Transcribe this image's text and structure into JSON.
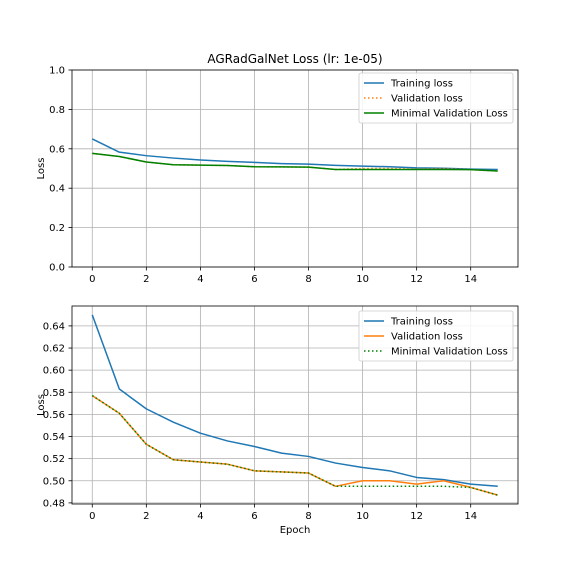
{
  "chart_data": [
    {
      "type": "line",
      "title": "AGRadGalNet Loss (lr: 1e-05)",
      "xlabel": "",
      "ylabel": "Loss",
      "xlim": [
        -0.75,
        15.75
      ],
      "ylim": [
        0.0,
        1.0
      ],
      "xticks": [
        0,
        2,
        4,
        6,
        8,
        10,
        12,
        14
      ],
      "yticks": [
        0.0,
        0.2,
        0.4,
        0.6,
        0.8,
        1.0
      ],
      "ytick_decimals": 1,
      "grid": true,
      "legend": "top-right",
      "x": [
        0,
        1,
        2,
        3,
        4,
        5,
        6,
        7,
        8,
        9,
        10,
        11,
        12,
        13,
        14,
        15
      ],
      "series": [
        {
          "name": "Training loss",
          "color": "#1f77b4",
          "style": "solid",
          "values": [
            0.65,
            0.583,
            0.565,
            0.553,
            0.543,
            0.536,
            0.531,
            0.525,
            0.522,
            0.516,
            0.512,
            0.509,
            0.503,
            0.501,
            0.497,
            0.495
          ]
        },
        {
          "name": "Validation loss",
          "color": "#ff7f0e",
          "style": "dotted",
          "values": [
            0.577,
            0.561,
            0.533,
            0.519,
            0.517,
            0.515,
            0.509,
            0.508,
            0.507,
            0.495,
            0.5,
            0.5,
            0.497,
            0.5,
            0.494,
            0.487
          ]
        },
        {
          "name": "Minimal Validation Loss",
          "color": "#008000",
          "style": "solid",
          "values": [
            0.577,
            0.561,
            0.533,
            0.519,
            0.517,
            0.515,
            0.509,
            0.508,
            0.507,
            0.495,
            0.495,
            0.495,
            0.495,
            0.495,
            0.494,
            0.487
          ]
        }
      ]
    },
    {
      "type": "line",
      "title": "",
      "xlabel": "Epoch",
      "ylabel": "Loss",
      "xlim": [
        -0.75,
        15.75
      ],
      "ylim": [
        0.479,
        0.658
      ],
      "xticks": [
        0,
        2,
        4,
        6,
        8,
        10,
        12,
        14
      ],
      "yticks": [
        0.48,
        0.5,
        0.52,
        0.54,
        0.56,
        0.58,
        0.6,
        0.62,
        0.64
      ],
      "ytick_decimals": 2,
      "grid": true,
      "legend": "top-right",
      "x": [
        0,
        1,
        2,
        3,
        4,
        5,
        6,
        7,
        8,
        9,
        10,
        11,
        12,
        13,
        14,
        15
      ],
      "series": [
        {
          "name": "Training loss",
          "color": "#1f77b4",
          "style": "solid",
          "values": [
            0.65,
            0.583,
            0.565,
            0.553,
            0.543,
            0.536,
            0.531,
            0.525,
            0.522,
            0.516,
            0.512,
            0.509,
            0.503,
            0.501,
            0.497,
            0.495
          ]
        },
        {
          "name": "Validation loss",
          "color": "#ff7f0e",
          "style": "solid",
          "values": [
            0.577,
            0.561,
            0.533,
            0.519,
            0.517,
            0.515,
            0.509,
            0.508,
            0.507,
            0.495,
            0.5,
            0.5,
            0.497,
            0.5,
            0.494,
            0.487
          ]
        },
        {
          "name": "Minimal Validation Loss",
          "color": "#008000",
          "style": "dotted",
          "values": [
            0.577,
            0.561,
            0.533,
            0.519,
            0.517,
            0.515,
            0.509,
            0.508,
            0.507,
            0.495,
            0.495,
            0.495,
            0.495,
            0.495,
            0.494,
            0.487
          ]
        }
      ]
    }
  ]
}
